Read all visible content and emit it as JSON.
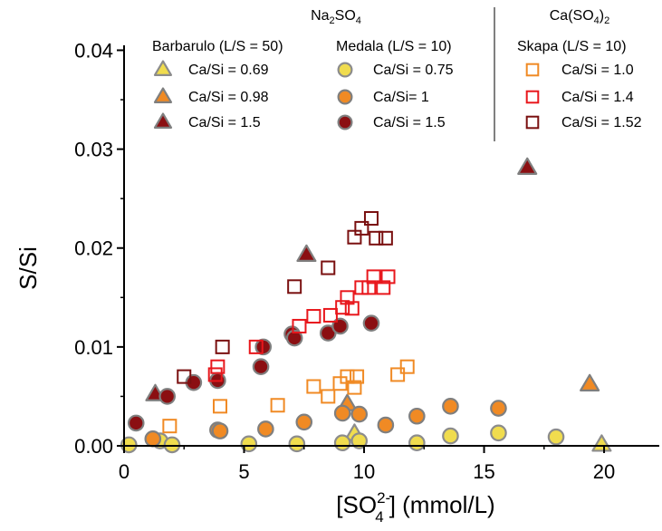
{
  "chart_data": {
    "type": "scatter",
    "xlabel_parts": {
      "open": "[SO",
      "sup": "2-",
      "sub": "4",
      "close": "] (mmol/L)"
    },
    "ylabel": "S/Si",
    "xlim": [
      0,
      22.3
    ],
    "ylim": [
      0,
      0.0405
    ],
    "xticks": [
      0,
      5,
      10,
      15,
      20
    ],
    "xtick_labels": [
      "0",
      "5",
      "10",
      "15",
      "20"
    ],
    "yticks": [
      0,
      0.01,
      0.02,
      0.03,
      0.04
    ],
    "ytick_labels": [
      "0.00",
      "0.01",
      "0.02",
      "0.03",
      "0.04"
    ],
    "legend": {
      "group1_title": {
        "base": "Na",
        "sub1": "2",
        "mid": "SO",
        "sub2": "4"
      },
      "group2_title": {
        "base": "Ca(SO",
        "sub1": "4",
        "mid": ")",
        "sub2": "2"
      },
      "col1_title": "Barbarulo (L/S = 50)",
      "col2_title": "Medala (L/S = 10)",
      "col3_title": "Skapa (L/S = 10)"
    },
    "series": [
      {
        "name": "Ca/Si = 0.69",
        "group": "Barbarulo",
        "marker": "triangle",
        "fill": "#f0dc4e",
        "stroke": "#8c8c8c",
        "points": [
          [
            9.6,
            0.0012
          ],
          [
            19.9,
            0.0001
          ]
        ]
      },
      {
        "name": "Ca/Si = 0.98",
        "group": "Barbarulo",
        "marker": "triangle",
        "fill": "#f08a24",
        "stroke": "#7f7f7f",
        "points": [
          [
            9.3,
            0.0042
          ],
          [
            19.4,
            0.0062
          ]
        ]
      },
      {
        "name": "Ca/Si = 1.5",
        "group": "Barbarulo",
        "marker": "triangle",
        "fill": "#8b0f12",
        "stroke": "#7f7f7f",
        "points": [
          [
            1.3,
            0.0052
          ],
          [
            7.6,
            0.0193
          ],
          [
            16.8,
            0.0281
          ]
        ]
      },
      {
        "name": "Ca/Si = 0.75",
        "group": "Medala",
        "marker": "circle",
        "fill": "#f0dc4e",
        "stroke": "#8c8c8c",
        "points": [
          [
            0.2,
            0.0001
          ],
          [
            1.5,
            0.0005
          ],
          [
            2.0,
            0.0001
          ],
          [
            5.2,
            0.0002
          ],
          [
            7.2,
            0.0002
          ],
          [
            9.1,
            0.0003
          ],
          [
            9.8,
            0.0005
          ],
          [
            12.2,
            0.0003
          ],
          [
            13.6,
            0.001
          ],
          [
            15.6,
            0.0013
          ],
          [
            18.0,
            0.0009
          ]
        ]
      },
      {
        "name": "Ca/Si= 1",
        "group": "Medala",
        "marker": "circle",
        "fill": "#f08a24",
        "stroke": "#7f7f7f",
        "points": [
          [
            1.2,
            0.0007
          ],
          [
            3.9,
            0.0016
          ],
          [
            4.0,
            0.0015
          ],
          [
            5.9,
            0.0017
          ],
          [
            7.5,
            0.0024
          ],
          [
            9.1,
            0.0033
          ],
          [
            9.8,
            0.0032
          ],
          [
            10.9,
            0.0021
          ],
          [
            12.2,
            0.003
          ],
          [
            13.6,
            0.004
          ],
          [
            15.6,
            0.0038
          ]
        ]
      },
      {
        "name": "Ca/Si = 1.5",
        "group": "Medala",
        "marker": "circle",
        "fill": "#8b0f12",
        "stroke": "#7f7f7f",
        "points": [
          [
            0.5,
            0.0023
          ],
          [
            1.8,
            0.005
          ],
          [
            2.9,
            0.0064
          ],
          [
            3.9,
            0.0066
          ],
          [
            5.7,
            0.008
          ],
          [
            5.8,
            0.01
          ],
          [
            7.0,
            0.0113
          ],
          [
            7.1,
            0.0109
          ],
          [
            8.5,
            0.0114
          ],
          [
            9.0,
            0.0121
          ],
          [
            10.3,
            0.0124
          ]
        ]
      },
      {
        "name": "Ca/Si = 1.0",
        "group": "Skapa",
        "marker": "square",
        "fill": "none",
        "stroke": "#f08a24",
        "points": [
          [
            1.9,
            0.002
          ],
          [
            4.0,
            0.004
          ],
          [
            6.4,
            0.0041
          ],
          [
            7.9,
            0.006
          ],
          [
            8.5,
            0.005
          ],
          [
            9.0,
            0.0063
          ],
          [
            9.3,
            0.007
          ],
          [
            9.7,
            0.007
          ],
          [
            9.6,
            0.0059
          ],
          [
            11.4,
            0.0072
          ],
          [
            11.8,
            0.008
          ]
        ]
      },
      {
        "name": "Ca/Si = 1.4",
        "group": "Skapa",
        "marker": "square",
        "fill": "none",
        "stroke": "#e8171c",
        "points": [
          [
            3.8,
            0.0072
          ],
          [
            3.9,
            0.008
          ],
          [
            5.5,
            0.01
          ],
          [
            7.3,
            0.0121
          ],
          [
            7.9,
            0.0131
          ],
          [
            8.6,
            0.0132
          ],
          [
            9.1,
            0.014
          ],
          [
            9.3,
            0.015
          ],
          [
            9.5,
            0.0139
          ],
          [
            9.9,
            0.016
          ],
          [
            10.2,
            0.016
          ],
          [
            10.4,
            0.0171
          ],
          [
            10.8,
            0.016
          ],
          [
            11.0,
            0.0171
          ]
        ]
      },
      {
        "name": "Ca/Si = 1.52",
        "group": "Skapa",
        "marker": "square",
        "fill": "none",
        "stroke": "#7a1010",
        "points": [
          [
            2.5,
            0.007
          ],
          [
            4.1,
            0.01
          ],
          [
            7.1,
            0.0161
          ],
          [
            8.5,
            0.018
          ],
          [
            9.6,
            0.0211
          ],
          [
            9.9,
            0.022
          ],
          [
            10.3,
            0.023
          ],
          [
            10.5,
            0.021
          ],
          [
            10.9,
            0.021
          ]
        ]
      }
    ]
  }
}
